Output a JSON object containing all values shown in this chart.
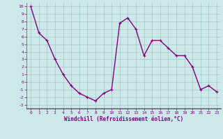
{
  "x": [
    0,
    1,
    2,
    3,
    4,
    5,
    6,
    7,
    8,
    9,
    10,
    11,
    12,
    13,
    14,
    15,
    16,
    17,
    18,
    19,
    20,
    21,
    22,
    23
  ],
  "y": [
    10,
    6.5,
    5.5,
    3.0,
    1.0,
    -0.5,
    -1.5,
    -2.0,
    -2.5,
    -1.5,
    -1.0,
    7.8,
    8.5,
    7.0,
    3.5,
    5.5,
    5.5,
    4.5,
    3.5,
    3.5,
    2.0,
    -1.0,
    -0.5,
    -1.3
  ],
  "line_color": "#800080",
  "marker": "+",
  "bg_color": "#cce8e8",
  "grid_color": "#aacccc",
  "xlabel": "Windchill (Refroidissement éolien,°C)",
  "tick_color": "#800080",
  "ylim": [
    -3.5,
    10.5
  ],
  "xlim": [
    -0.5,
    23.5
  ],
  "yticks": [
    -3,
    -2,
    -1,
    0,
    1,
    2,
    3,
    4,
    5,
    6,
    7,
    8,
    9,
    10
  ],
  "xticks": [
    0,
    1,
    2,
    3,
    4,
    5,
    6,
    7,
    8,
    9,
    10,
    11,
    12,
    13,
    14,
    15,
    16,
    17,
    18,
    19,
    20,
    21,
    22,
    23
  ],
  "line_width": 1.0,
  "marker_size": 3
}
